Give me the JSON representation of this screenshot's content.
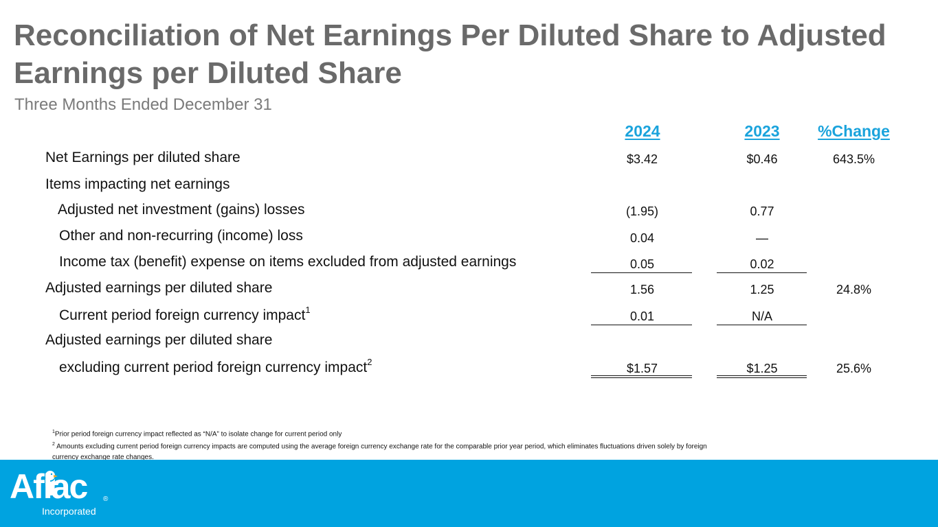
{
  "title": "Reconciliation of Net Earnings Per Diluted Share to Adjusted Earnings per Diluted Share",
  "subtitle": "Three Months Ended December 31",
  "columns": {
    "year1": "2024",
    "year2": "2023",
    "change": "%Change"
  },
  "rows": [
    {
      "label": "Net Earnings per diluted share",
      "v1": "$3.42",
      "v2": "$0.46",
      "chg": "643.5%"
    },
    {
      "label": "Items impacting net earnings",
      "v1": "",
      "v2": "",
      "chg": ""
    },
    {
      "label": "Adjusted net investment (gains) losses",
      "v1": "(1.95)",
      "v2": "0.77",
      "chg": ""
    },
    {
      "label": "Other and non-recurring (income) loss",
      "v1": "0.04",
      "v2": "—",
      "chg": ""
    },
    {
      "label": "Income tax (benefit) expense on items excluded from adjusted earnings",
      "v1": "0.05",
      "v2": "0.02",
      "chg": ""
    },
    {
      "label": "Adjusted earnings per diluted share",
      "v1": "1.56",
      "v2": "1.25",
      "chg": "24.8%"
    },
    {
      "label": "Current period foreign currency impact",
      "sup": "1",
      "v1": "0.01",
      "v2": "N/A",
      "chg": ""
    },
    {
      "label": "Adjusted earnings per diluted share",
      "v1": "",
      "v2": "",
      "chg": ""
    },
    {
      "label": "excluding current period foreign currency impact",
      "sup": "2",
      "v1": "$1.57",
      "v2": "$1.25",
      "chg": "25.6%"
    }
  ],
  "footnotes": {
    "n1_mark": "1",
    "n1": "Prior period foreign currency impact reflected as “N/A” to isolate change for current period only",
    "n2_mark": "2",
    "n2": " Amounts excluding current period foreign currency impacts are computed using the average foreign currency exchange rate for the comparable prior year period, which eliminates fluctuations driven solely by foreign currency exchange rate changes."
  },
  "footer": {
    "logo_text": "Aflac",
    "logo_sub": "Incorporated",
    "reg_mark": "®",
    "color": "#00a3e0"
  }
}
